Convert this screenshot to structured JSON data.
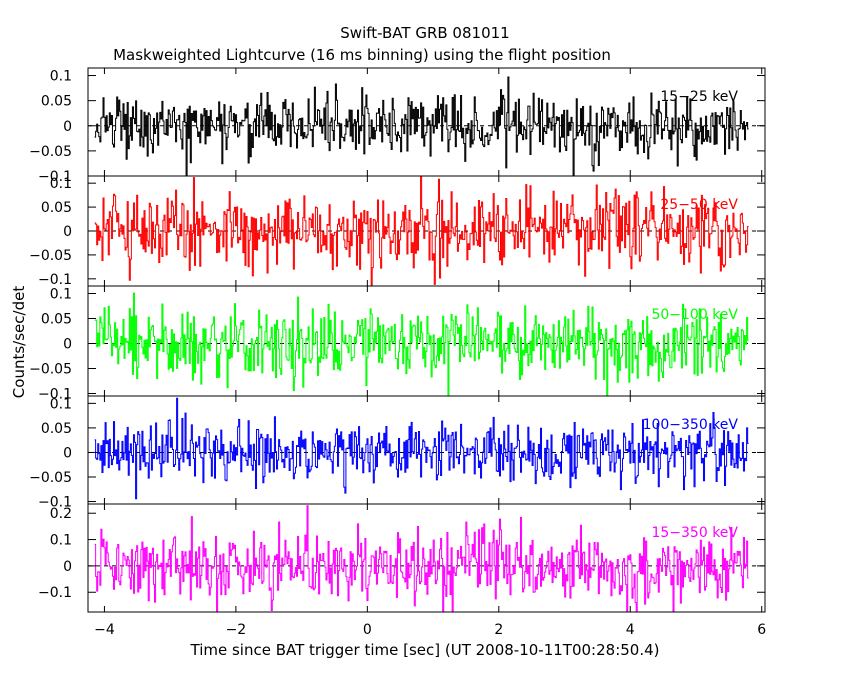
{
  "chart_data": {
    "type": "line",
    "title": "Swift-BAT GRB 081011",
    "subtitle": "Maskweighted Lightcurve (16 ms binning) using the flight position",
    "xlabel": "Time since BAT trigger time [sec] (UT 2008-10-11T00:28:50.4)",
    "ylabel": "Counts/sec/det",
    "xlim": [
      -4.25,
      6.05
    ],
    "x_ticks": [
      -4,
      -2,
      0,
      2,
      4,
      6
    ],
    "x_tick_labels": [
      "−4",
      "−2",
      "0",
      "2",
      "4",
      "6"
    ],
    "bin_size_sec": 0.016,
    "x_range_data": [
      -4.15,
      5.8
    ],
    "grid": false,
    "panels": [
      {
        "name": "15-25 keV",
        "label": "15−25 keV",
        "color": "#000000",
        "ylim": [
          -0.1,
          0.115
        ],
        "y_ticks": [
          -0.1,
          -0.05,
          0,
          0.05,
          0.1
        ],
        "y_tick_labels": [
          "−0.1",
          "−0.05",
          "0",
          "0.05",
          "0.1"
        ],
        "noise_sd": 0.03,
        "envelope": [
          [
            -4.2,
            0.0
          ],
          [
            6.0,
            0.0
          ]
        ]
      },
      {
        "name": "25-50 keV",
        "label": "25−50 keV",
        "color": "#ff0000",
        "ylim": [
          -0.115,
          0.115
        ],
        "y_ticks": [
          -0.1,
          -0.05,
          0,
          0.05,
          0.1
        ],
        "y_tick_labels": [
          "−0.1",
          "−0.05",
          "0",
          "0.05",
          "0.1"
        ],
        "noise_sd": 0.04,
        "envelope": [
          [
            -4.2,
            0.0
          ],
          [
            6.0,
            0.0
          ]
        ]
      },
      {
        "name": "50-100 keV",
        "label": "50−100 keV",
        "color": "#00ff00",
        "ylim": [
          -0.105,
          0.115
        ],
        "y_ticks": [
          -0.1,
          -0.05,
          0,
          0.05,
          0.1
        ],
        "y_tick_labels": [
          "−0.1",
          "−0.05",
          "0",
          "0.05",
          "0.1"
        ],
        "noise_sd": 0.035,
        "envelope": [
          [
            -4.2,
            0.0
          ],
          [
            6.0,
            0.0
          ]
        ]
      },
      {
        "name": "100-350 keV",
        "label": "100−350 keV",
        "color": "#0000ff",
        "ylim": [
          -0.105,
          0.115
        ],
        "y_ticks": [
          -0.1,
          -0.05,
          0,
          0.05,
          0.1
        ],
        "y_tick_labels": [
          "−0.1",
          "−0.05",
          "0",
          "0.05",
          "0.1"
        ],
        "noise_sd": 0.03,
        "envelope": [
          [
            -4.2,
            0.0
          ],
          [
            6.0,
            0.0
          ]
        ]
      },
      {
        "name": "15-350 keV",
        "label": "15−350 keV",
        "color": "#ff00ff",
        "ylim": [
          -0.175,
          0.235
        ],
        "y_ticks": [
          -0.1,
          0,
          0.1,
          0.2
        ],
        "y_tick_labels": [
          "−0.1",
          "0",
          "0.1",
          "0.2"
        ],
        "noise_sd": 0.065,
        "envelope": [
          [
            -4.2,
            0.0
          ],
          [
            6.0,
            0.0
          ]
        ]
      }
    ]
  }
}
